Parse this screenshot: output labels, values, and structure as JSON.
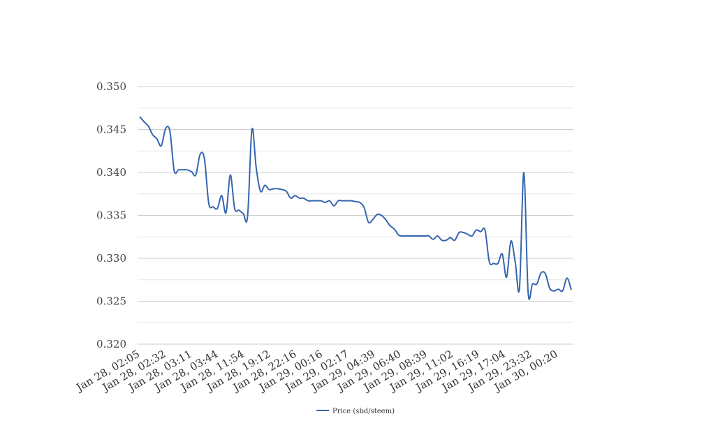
{
  "chart_data": {
    "type": "line",
    "title": "",
    "xlabel": "",
    "ylabel": "",
    "ylim": [
      0.32,
      0.35
    ],
    "yticks": [
      "0.320",
      "0.325",
      "0.330",
      "0.335",
      "0.340",
      "0.345",
      "0.350"
    ],
    "grid": true,
    "legend_position": "bottom-center",
    "colors": {
      "line": "#3565b0",
      "grid_major": "#cccccc",
      "grid_minor": "#e6e6e6"
    },
    "xtick_labels": [
      "Jan 28, 02:05",
      "Jan 28, 02:32",
      "Jan 28, 03:11",
      "Jan 28, 03:44",
      "Jan 28, 11:54",
      "Jan 28, 19:12",
      "Jan 28, 22:16",
      "Jan 29, 00:16",
      "Jan 29, 02:17",
      "Jan 29, 04:39",
      "Jan 29, 06:40",
      "Jan 29, 08:39",
      "Jan 29, 11:02",
      "Jan 29, 16:19",
      "Jan 29, 17:04",
      "Jan 29, 23:32",
      "Jan 30, 00:20"
    ],
    "series": [
      {
        "name": "Price (sbd/steem)",
        "values": [
          0.3465,
          0.3459,
          0.3454,
          0.3444,
          0.3439,
          0.3431,
          0.3451,
          0.3448,
          0.3402,
          0.3403,
          0.3403,
          0.3403,
          0.3401,
          0.3397,
          0.3421,
          0.3416,
          0.3364,
          0.336,
          0.3358,
          0.3373,
          0.3353,
          0.3397,
          0.3358,
          0.3356,
          0.3352,
          0.3349,
          0.345,
          0.3405,
          0.3378,
          0.3385,
          0.338,
          0.3381,
          0.3381,
          0.338,
          0.3378,
          0.337,
          0.3373,
          0.337,
          0.337,
          0.3367,
          0.3367,
          0.3367,
          0.3367,
          0.3365,
          0.3367,
          0.3361,
          0.3367,
          0.3367,
          0.3367,
          0.3367,
          0.3366,
          0.3365,
          0.3359,
          0.3342,
          0.3345,
          0.3351,
          0.335,
          0.3345,
          0.3338,
          0.3334,
          0.3327,
          0.3326,
          0.3326,
          0.3326,
          0.3326,
          0.3326,
          0.3326,
          0.3326,
          0.3322,
          0.3326,
          0.3321,
          0.3321,
          0.3324,
          0.3321,
          0.333,
          0.333,
          0.3328,
          0.3326,
          0.3333,
          0.3331,
          0.3333,
          0.3296,
          0.3294,
          0.3294,
          0.3305,
          0.3278,
          0.332,
          0.3296,
          0.3265,
          0.34,
          0.326,
          0.327,
          0.327,
          0.3283,
          0.3282,
          0.3265,
          0.3262,
          0.3264,
          0.3262,
          0.3277,
          0.3263
        ]
      }
    ]
  }
}
